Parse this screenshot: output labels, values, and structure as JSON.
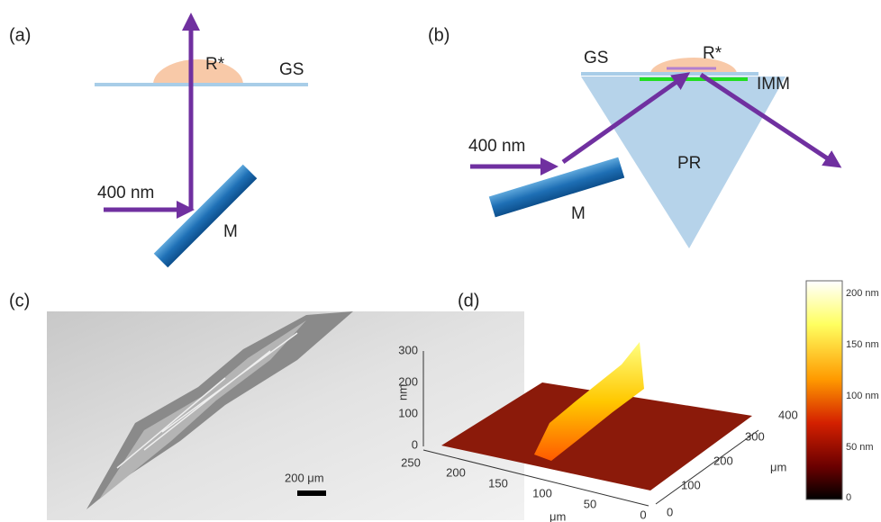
{
  "panel_a": {
    "label": "(a)",
    "laser": "400 nm",
    "sample": "R*",
    "substrate": "GS",
    "mirror": "M"
  },
  "panel_b": {
    "label": "(b)",
    "laser": "400 nm",
    "sample": "R*",
    "substrate": "GS",
    "immersion": "IMM",
    "prism": "PR",
    "mirror": "M"
  },
  "panel_c": {
    "label": "(c)",
    "scale_bar": "200 μm"
  },
  "panel_d": {
    "label": "(d)",
    "z_title": "nm",
    "z_ticks": [
      "0",
      "100",
      "200",
      "300"
    ],
    "x_title": "μm",
    "x_ticks": [
      "250",
      "200",
      "150",
      "100",
      "50",
      "0"
    ],
    "y_title": "μm",
    "y_ticks": [
      "0",
      "100",
      "200",
      "300",
      "400"
    ],
    "colorbar_ticks": [
      "200 nm",
      "150 nm",
      "100 nm",
      "50 nm",
      "0"
    ]
  }
}
